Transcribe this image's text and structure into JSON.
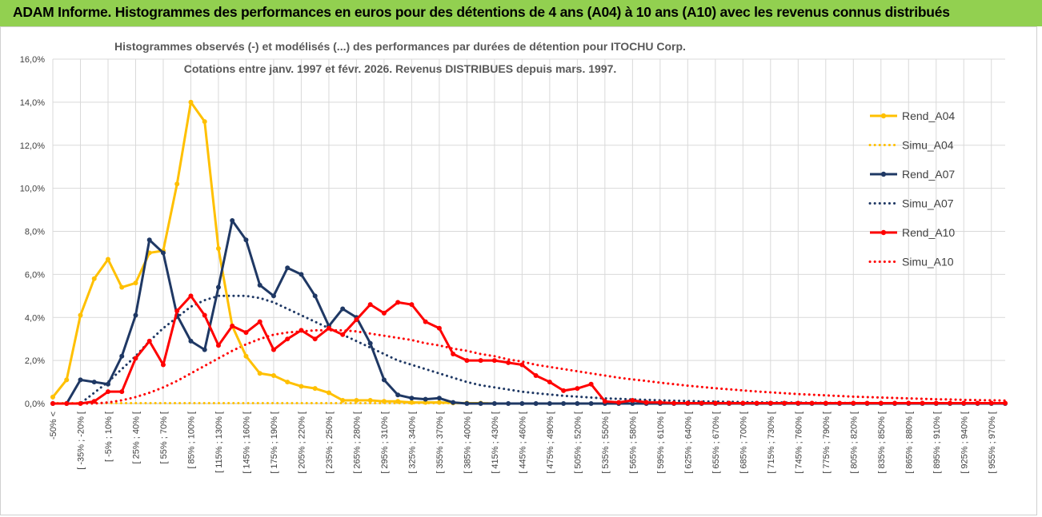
{
  "header": {
    "title": "ADAM Informe. Histogrammes des performances en euros pour des détentions de 4 ans (A04) à 10 ans (A10) avec les revenus connus distribués"
  },
  "chart_data": {
    "type": "line",
    "title": [
      "Histogrammes observés (-) et modélisés (...) des performances par durées de détention pour ITOCHU Corp.",
      "Cotations entre janv. 1997 et févr. 2026. Revenus DISTRIBUES depuis mars. 1997."
    ],
    "xlabel": "",
    "ylabel": "",
    "ylim": [
      0,
      16
    ],
    "yticks": [
      "0,0%",
      "2,0%",
      "4,0%",
      "6,0%",
      "8,0%",
      "10,0%",
      "12,0%",
      "14,0%",
      "16,0%"
    ],
    "legend_position": "right",
    "x_labels": [
      "-50% <",
      "[ -35% ; -20% [",
      "[ -5% ; 10% [",
      "[ 25% ; 40% [",
      "[ 55% ; 70% [",
      "[ 85% ; 100% [",
      "[ 115% ; 130% [",
      "[ 145% ; 160% [",
      "[ 175% ; 190% [",
      "[ 205% ; 220% [",
      "[ 235% ; 250% [",
      "[ 265% ; 280% [",
      "[ 295% ; 310% [",
      "[ 325% ; 340% [",
      "[ 355% ; 370% [",
      "[ 385% ; 400% [",
      "[ 415% ; 430% [",
      "[ 445% ; 460% [",
      "[ 475% ; 490% [",
      "[ 505% ; 520% [",
      "[ 535% ; 550% [",
      "[ 565% ; 580% [",
      "[ 595% ; 610% [",
      "[ 625% ; 640% [",
      "[ 655% ; 670% [",
      "[ 685% ; 700% [",
      "[ 715% ; 730% [",
      "[ 745% ; 760% [",
      "[ 775% ; 790% [",
      "[ 805% ; 820% [",
      "[ 835% ; 850% [",
      "[ 865% ; 880% [",
      "[ 895% ; 910% [",
      "[ 925% ; 940% [",
      "[ 955% ; 970% ["
    ],
    "n_categories": 70,
    "series": [
      {
        "name": "Rend_A04",
        "color": "#ffc000",
        "style": "solid",
        "marker": true,
        "values": [
          0.3,
          1.1,
          4.1,
          5.8,
          6.7,
          5.4,
          5.6,
          7.0,
          7.1,
          10.2,
          14.0,
          13.1,
          7.2,
          3.6,
          2.2,
          1.4,
          1.3,
          1.0,
          0.8,
          0.7,
          0.5,
          0.15,
          0.15,
          0.15,
          0.1,
          0.1,
          0.05,
          0.05,
          0.05,
          0.03,
          0.02,
          0.02,
          0,
          0,
          0,
          0,
          0,
          0,
          0,
          0,
          0,
          0,
          0,
          0,
          0,
          0,
          0,
          0,
          0,
          0,
          0,
          0,
          0,
          0,
          0,
          0,
          0,
          0,
          0,
          0,
          0,
          0,
          0,
          0,
          0,
          0,
          0,
          0,
          0,
          0
        ]
      },
      {
        "name": "Simu_A04",
        "color": "#ffc000",
        "style": "dotted",
        "marker": false,
        "values": [
          0.02,
          0.02,
          0.02,
          0.02,
          0.02,
          0.02,
          0.02,
          0.02,
          0.02,
          0.02,
          0.02,
          0.02,
          0.02,
          0.02,
          0.02,
          0.02,
          0.02,
          0.02,
          0.02,
          0.02,
          0.02,
          0.02,
          0.02,
          0.02,
          0.02,
          0.02,
          0.02,
          0.02,
          0.02,
          0.02,
          0.02,
          0.02,
          0,
          0,
          0,
          0,
          0,
          0,
          0,
          0,
          0,
          0,
          0,
          0,
          0,
          0,
          0,
          0,
          0,
          0,
          0,
          0,
          0,
          0,
          0,
          0,
          0,
          0,
          0,
          0,
          0,
          0,
          0,
          0,
          0,
          0,
          0,
          0,
          0,
          0
        ]
      },
      {
        "name": "Rend_A07",
        "color": "#1f3864",
        "style": "solid",
        "marker": true,
        "values": [
          0,
          0,
          1.1,
          1.0,
          0.9,
          2.2,
          4.1,
          7.6,
          7.0,
          4.1,
          2.9,
          2.5,
          5.4,
          8.5,
          7.6,
          5.5,
          5.0,
          6.3,
          6.0,
          5.0,
          3.6,
          4.4,
          4.0,
          2.8,
          1.1,
          0.4,
          0.25,
          0.2,
          0.25,
          0.05,
          0,
          0,
          0,
          0,
          0,
          0,
          0,
          0,
          0,
          0,
          0,
          0,
          0,
          0,
          0,
          0,
          0,
          0,
          0,
          0,
          0,
          0,
          0,
          0,
          0,
          0,
          0,
          0,
          0,
          0,
          0,
          0,
          0,
          0,
          0,
          0,
          0,
          0,
          0,
          0
        ]
      },
      {
        "name": "Simu_A07",
        "color": "#1f3864",
        "style": "dotted",
        "marker": false,
        "values": [
          0,
          0,
          0,
          0.5,
          1.0,
          1.6,
          2.2,
          2.9,
          3.5,
          4.0,
          4.5,
          4.8,
          5.0,
          5.0,
          5.0,
          4.9,
          4.7,
          4.4,
          4.1,
          3.8,
          3.5,
          3.2,
          2.9,
          2.6,
          2.3,
          2.0,
          1.8,
          1.6,
          1.4,
          1.2,
          1.0,
          0.85,
          0.75,
          0.65,
          0.55,
          0.48,
          0.42,
          0.36,
          0.32,
          0.28,
          0.24,
          0.22,
          0.19,
          0.17,
          0.15,
          0.13,
          0.12,
          0.1,
          0.09,
          0.08,
          0.07,
          0.06,
          0.05,
          0.05,
          0.04,
          0.04,
          0.03,
          0.03,
          0.03,
          0.02,
          0.02,
          0.02,
          0.02,
          0.01,
          0.01,
          0.01,
          0.01,
          0.01,
          0.01,
          0.01
        ]
      },
      {
        "name": "Rend_A10",
        "color": "#ff0000",
        "style": "solid",
        "marker": true,
        "values": [
          0,
          0,
          0,
          0.1,
          0.55,
          0.55,
          2.1,
          2.9,
          1.8,
          4.3,
          5.0,
          4.1,
          2.7,
          3.6,
          3.3,
          3.8,
          2.5,
          3.0,
          3.4,
          3.0,
          3.5,
          3.2,
          3.9,
          4.6,
          4.2,
          4.7,
          4.6,
          3.8,
          3.5,
          2.3,
          2.0,
          2.0,
          2.0,
          1.9,
          1.8,
          1.3,
          1.0,
          0.6,
          0.7,
          0.9,
          0.1,
          0.05,
          0.15,
          0.05,
          0.05,
          0.02,
          0.02,
          0.02,
          0.02,
          0.02,
          0.02,
          0.02,
          0.02,
          0.02,
          0.02,
          0.02,
          0.02,
          0.02,
          0.02,
          0.02,
          0.02,
          0.02,
          0.02,
          0.02,
          0.02,
          0.02,
          0.02,
          0.02,
          0.02,
          0.02
        ]
      },
      {
        "name": "Simu_A10",
        "color": "#ff0000",
        "style": "dotted",
        "marker": false,
        "values": [
          0,
          0,
          0,
          0,
          0.05,
          0.15,
          0.3,
          0.5,
          0.75,
          1.05,
          1.4,
          1.75,
          2.1,
          2.45,
          2.75,
          3.0,
          3.2,
          3.3,
          3.35,
          3.4,
          3.4,
          3.4,
          3.35,
          3.25,
          3.15,
          3.05,
          2.95,
          2.8,
          2.7,
          2.55,
          2.45,
          2.3,
          2.2,
          2.05,
          1.95,
          1.8,
          1.7,
          1.6,
          1.5,
          1.4,
          1.3,
          1.2,
          1.12,
          1.05,
          0.97,
          0.9,
          0.83,
          0.77,
          0.71,
          0.66,
          0.61,
          0.56,
          0.52,
          0.48,
          0.44,
          0.41,
          0.38,
          0.35,
          0.32,
          0.3,
          0.28,
          0.26,
          0.24,
          0.22,
          0.2,
          0.19,
          0.17,
          0.16,
          0.15,
          0.14
        ]
      }
    ]
  }
}
